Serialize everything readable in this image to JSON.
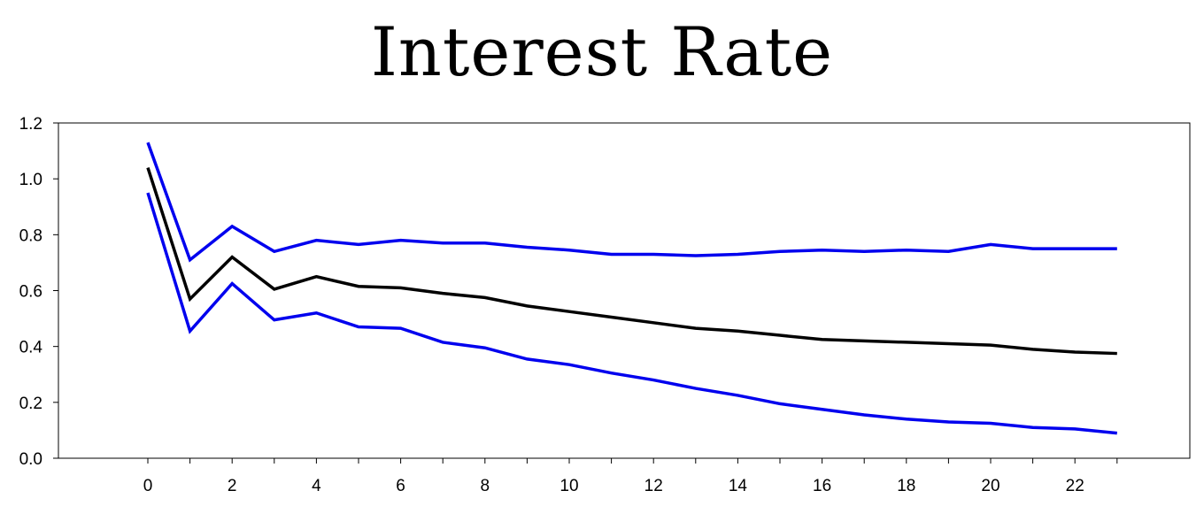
{
  "chart_data": {
    "type": "line",
    "title": "Interest Rate",
    "xlabel": "",
    "ylabel": "",
    "xlim": [
      -2,
      25
    ],
    "ylim": [
      0,
      1.2
    ],
    "x_ticks": [
      0,
      2,
      4,
      6,
      8,
      10,
      12,
      14,
      16,
      18,
      20,
      22
    ],
    "x_tick_labels": [
      "0",
      "2",
      "4",
      "6",
      "8",
      "10",
      "12",
      "14",
      "16",
      "18",
      "20",
      "22"
    ],
    "y_ticks": [
      0,
      0.2,
      0.4,
      0.6,
      0.8,
      1.0,
      1.2
    ],
    "y_tick_labels": [
      "0.0",
      "0.2",
      "0.4",
      "0.6",
      "0.8",
      "1.0",
      "1.2"
    ],
    "grid": false,
    "legend": "none",
    "x": [
      0,
      1,
      2,
      3,
      4,
      5,
      6,
      7,
      8,
      9,
      10,
      11,
      12,
      13,
      14,
      15,
      16,
      17,
      18,
      19,
      20,
      21,
      22,
      23
    ],
    "series": [
      {
        "color": "#0000ee",
        "values": [
          1.13,
          0.71,
          0.83,
          0.74,
          0.78,
          0.765,
          0.78,
          0.77,
          0.77,
          0.755,
          0.745,
          0.73,
          0.73,
          0.725,
          0.73,
          0.74,
          0.745,
          0.74,
          0.745,
          0.74,
          0.765,
          0.75,
          0.75,
          0.75
        ]
      },
      {
        "color": "#000000",
        "values": [
          1.04,
          0.57,
          0.72,
          0.605,
          0.65,
          0.615,
          0.61,
          0.59,
          0.575,
          0.545,
          0.525,
          0.505,
          0.485,
          0.465,
          0.455,
          0.44,
          0.425,
          0.42,
          0.415,
          0.41,
          0.405,
          0.39,
          0.38,
          0.375
        ]
      },
      {
        "color": "#0000ee",
        "values": [
          0.95,
          0.455,
          0.625,
          0.495,
          0.52,
          0.47,
          0.465,
          0.415,
          0.395,
          0.355,
          0.335,
          0.305,
          0.28,
          0.25,
          0.225,
          0.195,
          0.175,
          0.155,
          0.14,
          0.13,
          0.125,
          0.11,
          0.105,
          0.09
        ]
      }
    ]
  }
}
